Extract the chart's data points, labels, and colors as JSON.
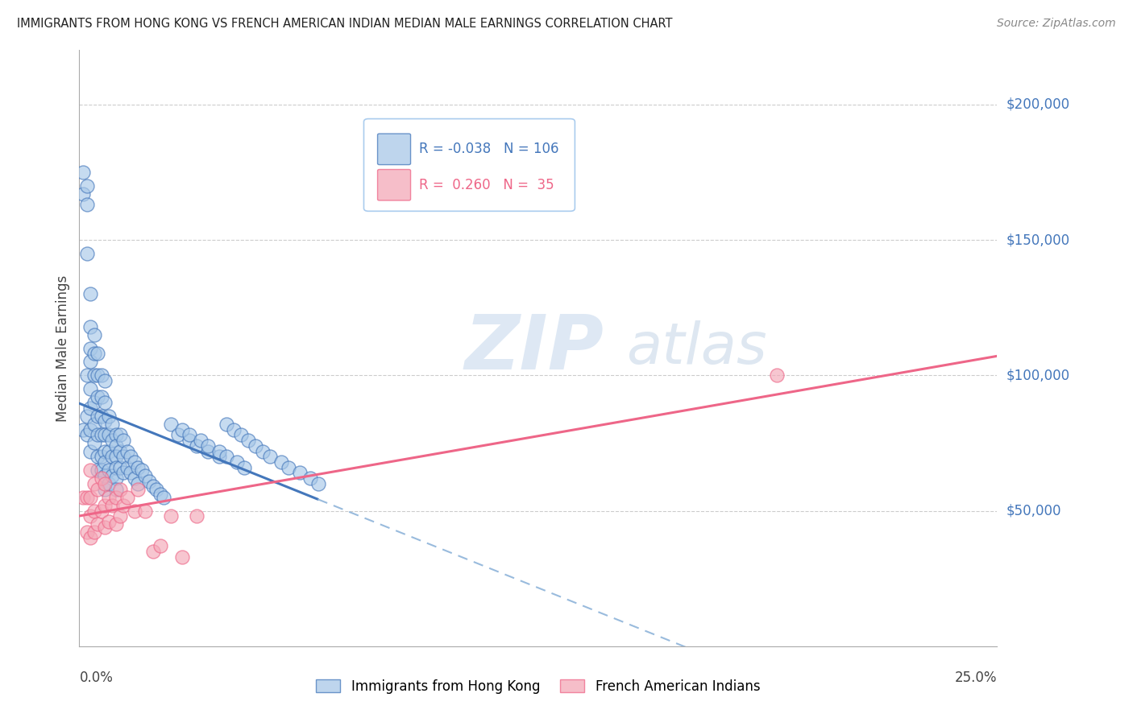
{
  "title": "IMMIGRANTS FROM HONG KONG VS FRENCH AMERICAN INDIAN MEDIAN MALE EARNINGS CORRELATION CHART",
  "source": "Source: ZipAtlas.com",
  "ylabel": "Median Male Earnings",
  "legend1_label": "Immigrants from Hong Kong",
  "legend2_label": "French American Indians",
  "r1": -0.038,
  "n1": 106,
  "r2": 0.26,
  "n2": 35,
  "blue_color": "#A8C8E8",
  "pink_color": "#F4A8B8",
  "trend_blue": "#4477BB",
  "trend_pink": "#EE6688",
  "trend_gray": "#99BBDD",
  "watermark_zip": "ZIP",
  "watermark_atlas": "atlas",
  "xmin": 0.0,
  "xmax": 0.25,
  "ymin": 0,
  "ymax": 220000,
  "right_ytick_values": [
    200000,
    150000,
    100000,
    50000
  ],
  "right_ytick_labels": [
    "$200,000",
    "$150,000",
    "$100,000",
    "$50,000"
  ],
  "blue_x": [
    0.001,
    0.001,
    0.001,
    0.002,
    0.002,
    0.002,
    0.002,
    0.002,
    0.002,
    0.003,
    0.003,
    0.003,
    0.003,
    0.003,
    0.003,
    0.003,
    0.003,
    0.004,
    0.004,
    0.004,
    0.004,
    0.004,
    0.004,
    0.005,
    0.005,
    0.005,
    0.005,
    0.005,
    0.005,
    0.005,
    0.006,
    0.006,
    0.006,
    0.006,
    0.006,
    0.006,
    0.007,
    0.007,
    0.007,
    0.007,
    0.007,
    0.007,
    0.007,
    0.007,
    0.008,
    0.008,
    0.008,
    0.008,
    0.008,
    0.009,
    0.009,
    0.009,
    0.009,
    0.01,
    0.01,
    0.01,
    0.01,
    0.01,
    0.01,
    0.011,
    0.011,
    0.011,
    0.012,
    0.012,
    0.012,
    0.013,
    0.013,
    0.014,
    0.014,
    0.015,
    0.015,
    0.016,
    0.016,
    0.017,
    0.018,
    0.019,
    0.02,
    0.021,
    0.022,
    0.023,
    0.025,
    0.027,
    0.03,
    0.032,
    0.035,
    0.038,
    0.04,
    0.042,
    0.044,
    0.046,
    0.048,
    0.05,
    0.052,
    0.055,
    0.057,
    0.06,
    0.063,
    0.065,
    0.028,
    0.03,
    0.033,
    0.035,
    0.038,
    0.04,
    0.043,
    0.045
  ],
  "blue_y": [
    175000,
    167000,
    80000,
    170000,
    163000,
    145000,
    100000,
    85000,
    78000,
    130000,
    118000,
    110000,
    105000,
    95000,
    88000,
    80000,
    72000,
    115000,
    108000,
    100000,
    90000,
    82000,
    75000,
    108000,
    100000,
    92000,
    85000,
    78000,
    70000,
    65000,
    100000,
    92000,
    85000,
    78000,
    70000,
    65000,
    98000,
    90000,
    83000,
    78000,
    72000,
    68000,
    63000,
    58000,
    85000,
    78000,
    72000,
    65000,
    60000,
    82000,
    76000,
    70000,
    63000,
    78000,
    74000,
    70000,
    66000,
    62000,
    58000,
    78000,
    72000,
    66000,
    76000,
    70000,
    64000,
    72000,
    66000,
    70000,
    64000,
    68000,
    62000,
    66000,
    60000,
    65000,
    63000,
    61000,
    59000,
    58000,
    56000,
    55000,
    82000,
    78000,
    76000,
    74000,
    72000,
    70000,
    82000,
    80000,
    78000,
    76000,
    74000,
    72000,
    70000,
    68000,
    66000,
    64000,
    62000,
    60000,
    80000,
    78000,
    76000,
    74000,
    72000,
    70000,
    68000,
    66000
  ],
  "pink_x": [
    0.001,
    0.002,
    0.002,
    0.003,
    0.003,
    0.003,
    0.003,
    0.004,
    0.004,
    0.004,
    0.005,
    0.005,
    0.006,
    0.006,
    0.007,
    0.007,
    0.007,
    0.008,
    0.008,
    0.009,
    0.01,
    0.01,
    0.011,
    0.011,
    0.012,
    0.013,
    0.015,
    0.016,
    0.018,
    0.02,
    0.022,
    0.025,
    0.028,
    0.032,
    0.19
  ],
  "pink_y": [
    55000,
    55000,
    42000,
    65000,
    55000,
    48000,
    40000,
    60000,
    50000,
    42000,
    58000,
    45000,
    62000,
    50000,
    60000,
    52000,
    44000,
    55000,
    46000,
    52000,
    55000,
    45000,
    58000,
    48000,
    52000,
    55000,
    50000,
    58000,
    50000,
    35000,
    37000,
    48000,
    33000,
    48000,
    100000
  ],
  "trend_blue_x0": 0.0,
  "trend_blue_x1": 0.065,
  "trend_blue_x2": 0.25,
  "trend_pink_x0": 0.0,
  "trend_pink_x1": 0.25
}
